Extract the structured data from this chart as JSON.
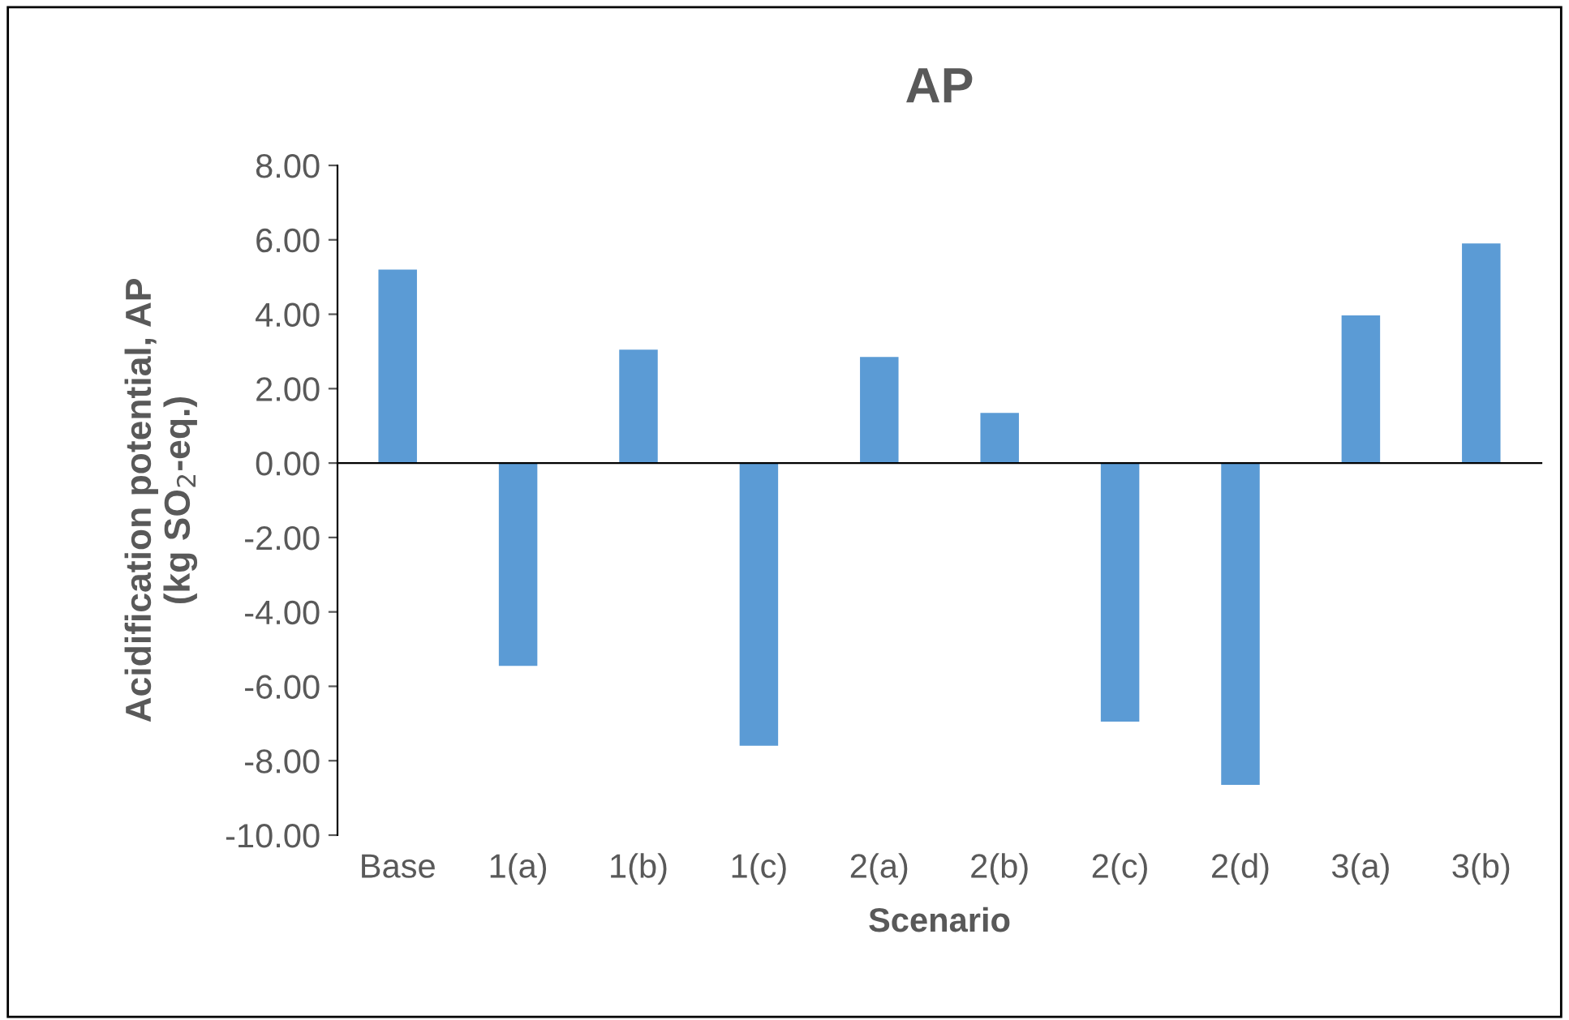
{
  "chart_data": {
    "type": "bar",
    "title": "AP",
    "xlabel": "Scenario",
    "ylabel": "Acidification potential, AP\n(kg SO$_{2}$-eq.)",
    "categories": [
      "Base",
      "1(a)",
      "1(b)",
      "1(c)",
      "2(a)",
      "2(b)",
      "2(c)",
      "2(d)",
      "3(a)",
      "3(b)"
    ],
    "values": [
      5.2,
      -5.45,
      3.05,
      -7.6,
      2.85,
      1.35,
      -6.95,
      -8.65,
      3.97,
      5.9
    ],
    "color": "#5b9bd5",
    "ylim": [
      -10,
      8
    ],
    "yticks": [
      {
        "value": -10,
        "label": "-10.00"
      },
      {
        "value": -8,
        "label": "-8.00"
      },
      {
        "value": -6,
        "label": "-6.00"
      },
      {
        "value": -4,
        "label": "-4.00"
      },
      {
        "value": -2,
        "label": "-2.00"
      },
      {
        "value": 0,
        "label": "0.00"
      },
      {
        "value": 2,
        "label": "2.00"
      },
      {
        "value": 4,
        "label": "4.00"
      },
      {
        "value": 6,
        "label": "6.00"
      },
      {
        "value": 8,
        "label": "8.00"
      }
    ],
    "legend": false
  }
}
